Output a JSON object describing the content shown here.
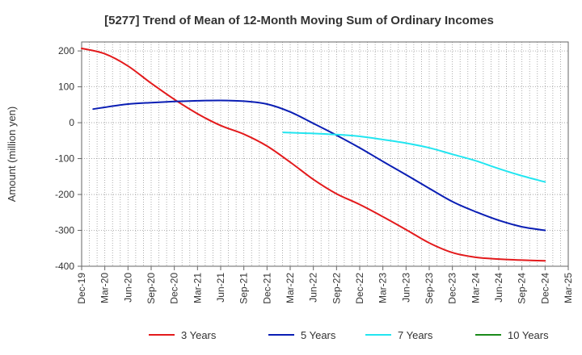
{
  "chart_data": {
    "type": "line",
    "title": "[5277]  Trend of Mean of 12-Month Moving Sum of Ordinary Incomes",
    "xlabel": "",
    "ylabel": "Amount (million yen)",
    "ylim": [
      -400,
      225
    ],
    "yticks": [
      200,
      100,
      0,
      -100,
      -200,
      -300,
      -400
    ],
    "ytick_labels": [
      "200",
      "100",
      "0",
      "-100",
      "-200",
      "-300",
      "-400"
    ],
    "x": [
      "Dec-19",
      "Mar-20",
      "Jun-20",
      "Sep-20",
      "Dec-20",
      "Mar-21",
      "Jun-21",
      "Sep-21",
      "Dec-21",
      "Mar-22",
      "Jun-22",
      "Sep-22",
      "Dec-22",
      "Mar-23",
      "Jun-23",
      "Sep-23",
      "Dec-23",
      "Mar-24",
      "Jun-24",
      "Sep-24",
      "Dec-24",
      "Mar-25"
    ],
    "series": [
      {
        "name": "3 Years",
        "color": "#e31a1c",
        "points": [
          [
            0,
            207
          ],
          [
            1,
            192
          ],
          [
            2,
            158
          ],
          [
            3,
            110
          ],
          [
            4,
            65
          ],
          [
            5,
            25
          ],
          [
            6,
            -8
          ],
          [
            7,
            -32
          ],
          [
            8,
            -65
          ],
          [
            9,
            -110
          ],
          [
            10,
            -158
          ],
          [
            11,
            -198
          ],
          [
            12,
            -228
          ],
          [
            13,
            -262
          ],
          [
            14,
            -298
          ],
          [
            15,
            -335
          ],
          [
            16,
            -362
          ],
          [
            17,
            -375
          ],
          [
            18,
            -380
          ],
          [
            19,
            -383
          ],
          [
            20,
            -385
          ]
        ]
      },
      {
        "name": "5 Years",
        "color": "#0a1eb4",
        "points": [
          [
            0.5,
            38
          ],
          [
            1,
            43
          ],
          [
            2,
            52
          ],
          [
            3,
            56
          ],
          [
            4,
            59
          ],
          [
            5,
            61
          ],
          [
            6,
            62
          ],
          [
            7,
            60
          ],
          [
            8,
            52
          ],
          [
            9,
            30
          ],
          [
            10,
            -2
          ],
          [
            11,
            -35
          ],
          [
            12,
            -70
          ],
          [
            13,
            -108
          ],
          [
            14,
            -145
          ],
          [
            15,
            -183
          ],
          [
            16,
            -220
          ],
          [
            17,
            -248
          ],
          [
            18,
            -272
          ],
          [
            19,
            -290
          ],
          [
            20,
            -300
          ]
        ]
      },
      {
        "name": "7 Years",
        "color": "#22e5f0",
        "points": [
          [
            8.7,
            -27
          ],
          [
            10,
            -30
          ],
          [
            11,
            -33
          ],
          [
            12,
            -38
          ],
          [
            13,
            -47
          ],
          [
            14,
            -57
          ],
          [
            15,
            -70
          ],
          [
            16,
            -88
          ],
          [
            17,
            -106
          ],
          [
            18,
            -128
          ],
          [
            19,
            -148
          ],
          [
            20,
            -165
          ]
        ]
      },
      {
        "name": "10 Years",
        "color": "#1a8a1a",
        "points": []
      }
    ],
    "legend_position": "bottom",
    "grid": true
  }
}
